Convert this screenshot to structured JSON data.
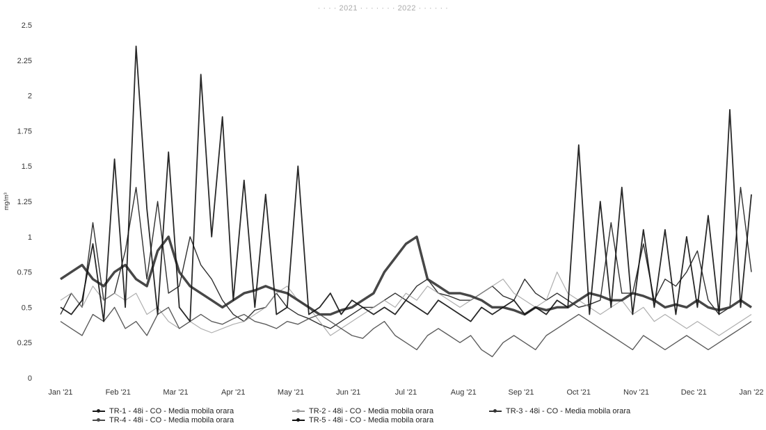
{
  "chart_data": {
    "type": "line",
    "title": "· · · · 2021 · · · · · · · 2022 · · · · · ·",
    "ylabel": "mg/m³",
    "xlabel": "",
    "ylim": [
      0,
      2.5
    ],
    "yticks": [
      "2.5",
      "2.25",
      "2",
      "1.75",
      "1.5",
      "1.25",
      "1",
      "0.75",
      "0.5",
      "0.25",
      "0"
    ],
    "ytick_values": [
      2.5,
      2.25,
      2,
      1.75,
      1.5,
      1.25,
      1,
      0.75,
      0.5,
      0.25,
      0
    ],
    "xticks": [
      "Jan '21",
      "Feb '21",
      "Mar '21",
      "Apr '21",
      "May '21",
      "Jun '21",
      "Jul '21",
      "Aug '21",
      "Sep '21",
      "Oct '21",
      "Nov '21",
      "Dec '21",
      "Jan '22"
    ],
    "grid": false,
    "legend_position": "bottom",
    "series": [
      {
        "name": "TR-1 - 48i - CO - Media mobila orara",
        "color": "#1a1a1a",
        "values": [
          0.45,
          0.6,
          0.5,
          1.1,
          0.55,
          0.6,
          0.9,
          1.35,
          0.7,
          1.25,
          0.6,
          0.65,
          1.0,
          0.8,
          0.7,
          0.55,
          0.45,
          0.4,
          0.48,
          0.5,
          0.6,
          0.5,
          0.45,
          0.42,
          0.38,
          0.35,
          0.4,
          0.45,
          0.5,
          0.5,
          0.55,
          0.6,
          0.55,
          0.65,
          0.7,
          0.6,
          0.58,
          0.55,
          0.55,
          0.6,
          0.65,
          0.58,
          0.55,
          0.7,
          0.6,
          0.55,
          0.6,
          0.55,
          0.5,
          0.52,
          0.55,
          1.1,
          0.6,
          0.6,
          0.95,
          0.55,
          0.7,
          0.65,
          0.75,
          0.9,
          0.55,
          0.45,
          0.5,
          1.35,
          0.75
        ]
      },
      {
        "name": "TR-2 - 48i - CO - Media mobila orara",
        "color": "#9a9a9a",
        "values": [
          0.55,
          0.6,
          0.5,
          0.65,
          0.55,
          0.6,
          0.55,
          0.6,
          0.45,
          0.5,
          0.4,
          0.35,
          0.4,
          0.35,
          0.32,
          0.35,
          0.38,
          0.4,
          0.45,
          0.5,
          0.6,
          0.65,
          0.55,
          0.5,
          0.4,
          0.3,
          0.35,
          0.4,
          0.45,
          0.5,
          0.55,
          0.5,
          0.6,
          0.55,
          0.65,
          0.6,
          0.55,
          0.5,
          0.55,
          0.6,
          0.65,
          0.7,
          0.6,
          0.55,
          0.5,
          0.55,
          0.75,
          0.6,
          0.55,
          0.5,
          0.45,
          0.5,
          0.55,
          0.45,
          0.5,
          0.4,
          0.45,
          0.4,
          0.35,
          0.4,
          0.35,
          0.3,
          0.35,
          0.4,
          0.45
        ]
      },
      {
        "name": "TR-3 - 48i - CO - Media mobila orara",
        "color": "#333333",
        "values": [
          0.7,
          0.75,
          0.8,
          0.7,
          0.65,
          0.75,
          0.8,
          0.7,
          0.65,
          0.9,
          1.0,
          0.75,
          0.65,
          0.6,
          0.55,
          0.5,
          0.55,
          0.6,
          0.62,
          0.65,
          0.62,
          0.6,
          0.55,
          0.5,
          0.45,
          0.45,
          0.48,
          0.5,
          0.55,
          0.6,
          0.75,
          0.85,
          0.95,
          1.0,
          0.7,
          0.65,
          0.6,
          0.6,
          0.58,
          0.55,
          0.5,
          0.5,
          0.48,
          0.45,
          0.5,
          0.48,
          0.5,
          0.5,
          0.55,
          0.6,
          0.58,
          0.55,
          0.55,
          0.6,
          0.58,
          0.55,
          0.5,
          0.52,
          0.5,
          0.55,
          0.5,
          0.48,
          0.5,
          0.55,
          0.5
        ]
      },
      {
        "name": "TR-4 - 48i - CO - Media mobila orara",
        "color": "#4a4a4a",
        "values": [
          0.4,
          0.35,
          0.3,
          0.45,
          0.4,
          0.5,
          0.35,
          0.4,
          0.3,
          0.45,
          0.5,
          0.35,
          0.4,
          0.45,
          0.4,
          0.38,
          0.42,
          0.45,
          0.4,
          0.38,
          0.35,
          0.4,
          0.38,
          0.42,
          0.45,
          0.4,
          0.35,
          0.3,
          0.28,
          0.35,
          0.4,
          0.3,
          0.25,
          0.2,
          0.3,
          0.35,
          0.3,
          0.25,
          0.3,
          0.2,
          0.15,
          0.25,
          0.3,
          0.25,
          0.2,
          0.3,
          0.35,
          0.4,
          0.45,
          0.4,
          0.35,
          0.3,
          0.25,
          0.2,
          0.3,
          0.25,
          0.2,
          0.25,
          0.3,
          0.25,
          0.2,
          0.25,
          0.3,
          0.35,
          0.4
        ]
      },
      {
        "name": "TR-5 - 48i - CO - Media mobila orara",
        "color": "#111111",
        "values": [
          0.5,
          0.45,
          0.55,
          0.95,
          0.4,
          1.55,
          0.5,
          2.35,
          1.2,
          0.45,
          1.6,
          0.5,
          0.4,
          2.15,
          1.0,
          1.85,
          0.55,
          1.4,
          0.5,
          1.3,
          0.45,
          0.5,
          1.5,
          0.45,
          0.5,
          0.6,
          0.45,
          0.55,
          0.5,
          0.45,
          0.5,
          0.45,
          0.55,
          0.5,
          0.45,
          0.55,
          0.5,
          0.45,
          0.4,
          0.5,
          0.45,
          0.5,
          0.55,
          0.45,
          0.5,
          0.45,
          0.55,
          0.5,
          1.65,
          0.45,
          1.25,
          0.5,
          1.35,
          0.45,
          1.05,
          0.5,
          1.05,
          0.45,
          1.0,
          0.5,
          1.15,
          0.45,
          1.9,
          0.5,
          1.3
        ]
      }
    ]
  }
}
